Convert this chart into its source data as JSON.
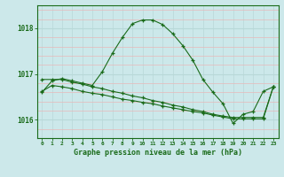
{
  "xlabel": "Graphe pression niveau de la mer (hPa)",
  "hours": [
    0,
    1,
    2,
    3,
    4,
    5,
    6,
    7,
    8,
    9,
    10,
    11,
    12,
    13,
    14,
    15,
    16,
    17,
    18,
    19,
    20,
    21,
    22,
    23
  ],
  "main_line": [
    1016.6,
    1016.85,
    1016.9,
    1016.85,
    1016.8,
    1016.75,
    1017.05,
    1017.45,
    1017.8,
    1018.1,
    1018.18,
    1018.18,
    1018.08,
    1017.88,
    1017.62,
    1017.3,
    1016.88,
    1016.6,
    1016.35,
    1015.92,
    1016.12,
    1016.18,
    1016.62,
    1016.72
  ],
  "flat_line1": [
    1016.88,
    1016.88,
    1016.88,
    1016.82,
    1016.78,
    1016.72,
    1016.68,
    1016.62,
    1016.58,
    1016.52,
    1016.48,
    1016.42,
    1016.38,
    1016.32,
    1016.28,
    1016.22,
    1016.18,
    1016.12,
    1016.08,
    1016.05,
    1016.05,
    1016.05,
    1016.05,
    1016.72
  ],
  "flat_line2": [
    1016.62,
    1016.75,
    1016.72,
    1016.68,
    1016.62,
    1016.58,
    1016.55,
    1016.5,
    1016.45,
    1016.42,
    1016.38,
    1016.35,
    1016.3,
    1016.26,
    1016.22,
    1016.18,
    1016.15,
    1016.1,
    1016.06,
    1016.02,
    1016.02,
    1016.02,
    1016.02,
    1016.72
  ],
  "bg_color": "#cce8ea",
  "line_color": "#1a6b1a",
  "grid_color_v": "#b8d8d8",
  "grid_color_h": "#e8b8b8",
  "text_color": "#1a6b1a",
  "ylim": [
    1015.6,
    1018.5
  ],
  "yticks": [
    1016,
    1017,
    1018
  ],
  "xlim": [
    -0.5,
    23.5
  ]
}
